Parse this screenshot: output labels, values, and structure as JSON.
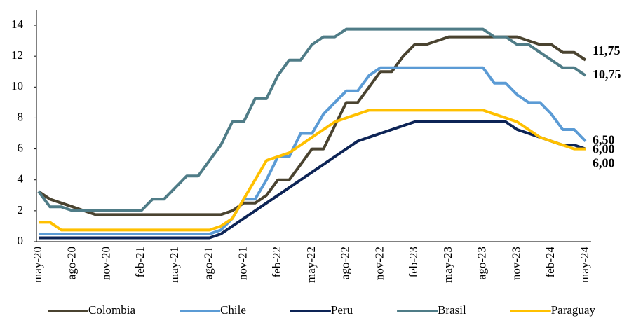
{
  "chart_data": {
    "type": "line",
    "categories": [
      "may-20",
      null,
      null,
      "ago-20",
      null,
      null,
      "nov-20",
      null,
      null,
      "feb-21",
      null,
      null,
      "may-21",
      null,
      null,
      "ago-21",
      null,
      null,
      "nov-21",
      null,
      null,
      "feb-22",
      null,
      null,
      "may-22",
      null,
      null,
      "ago-22",
      null,
      null,
      "nov-22",
      null,
      null,
      "feb-23",
      null,
      null,
      "may-23",
      null,
      null,
      "ago-23",
      null,
      null,
      "nov-23",
      null,
      null,
      "feb-24",
      null,
      null,
      "may-24"
    ],
    "ylim": [
      0,
      14.5
    ],
    "yticks": [
      0,
      2,
      4,
      6,
      8,
      10,
      12,
      14
    ],
    "legend": "bottom",
    "series": [
      {
        "name": "Colombia",
        "color": "#4a4330",
        "values": [
          3.25,
          2.75,
          2.5,
          2.25,
          2,
          1.75,
          1.75,
          1.75,
          1.75,
          1.75,
          1.75,
          1.75,
          1.75,
          1.75,
          1.75,
          1.75,
          1.75,
          2,
          2.5,
          2.5,
          3,
          4,
          4,
          5,
          6,
          6,
          7.5,
          9,
          9,
          10,
          11,
          11,
          12,
          12.75,
          12.75,
          13,
          13.25,
          13.25,
          13.25,
          13.25,
          13.25,
          13.25,
          13.25,
          13,
          12.75,
          12.75,
          12.25,
          12.25,
          11.75
        ],
        "value_labels": [
          null,
          null,
          null,
          null,
          null,
          null,
          null,
          null,
          null,
          null,
          null,
          null,
          null,
          null,
          null,
          null,
          null,
          null,
          null,
          null,
          null,
          null,
          null,
          null,
          null,
          null,
          null,
          null,
          null,
          null,
          null,
          null,
          null,
          null,
          null,
          null,
          null,
          null,
          null,
          null,
          null,
          null,
          null,
          null,
          null,
          null,
          null,
          null,
          "11,75"
        ]
      },
      {
        "name": "Chile",
        "color": "#5b9bd5",
        "values": [
          0.5,
          0.5,
          0.5,
          0.5,
          0.5,
          0.5,
          0.5,
          0.5,
          0.5,
          0.5,
          0.5,
          0.5,
          0.5,
          0.5,
          0.5,
          0.5,
          0.75,
          1.5,
          2.75,
          2.75,
          4,
          5.5,
          5.5,
          7,
          7,
          8.25,
          9,
          9.75,
          9.75,
          10.75,
          11.25,
          11.25,
          11.25,
          11.25,
          11.25,
          11.25,
          11.25,
          11.25,
          11.25,
          11.25,
          10.25,
          10.25,
          9.5,
          9,
          9,
          8.25,
          7.25,
          7.25,
          6.5
        ],
        "value_labels": [
          null,
          null,
          null,
          null,
          null,
          null,
          null,
          null,
          null,
          null,
          null,
          null,
          null,
          null,
          null,
          null,
          null,
          null,
          null,
          null,
          null,
          null,
          null,
          null,
          null,
          null,
          null,
          null,
          null,
          null,
          null,
          null,
          null,
          null,
          null,
          null,
          null,
          null,
          null,
          null,
          null,
          null,
          null,
          null,
          null,
          null,
          null,
          null,
          "6,50"
        ]
      },
      {
        "name": "Peru",
        "color": "#0d2456",
        "values": [
          0.25,
          0.25,
          0.25,
          0.25,
          0.25,
          0.25,
          0.25,
          0.25,
          0.25,
          0.25,
          0.25,
          0.25,
          0.25,
          0.25,
          0.25,
          0.25,
          0.5,
          1,
          1.5,
          2,
          2.5,
          3,
          3.5,
          4,
          4.5,
          5,
          5.5,
          6,
          6.5,
          6.75,
          7,
          7.25,
          7.5,
          7.75,
          7.75,
          7.75,
          7.75,
          7.75,
          7.75,
          7.75,
          7.75,
          7.75,
          7.25,
          7,
          6.75,
          6.5,
          6.25,
          6.25,
          6
        ],
        "value_labels": [
          null,
          null,
          null,
          null,
          null,
          null,
          null,
          null,
          null,
          null,
          null,
          null,
          null,
          null,
          null,
          null,
          null,
          null,
          null,
          null,
          null,
          null,
          null,
          null,
          null,
          null,
          null,
          null,
          null,
          null,
          null,
          null,
          null,
          null,
          null,
          null,
          null,
          null,
          null,
          null,
          null,
          null,
          null,
          null,
          null,
          null,
          null,
          null,
          "6,00"
        ]
      },
      {
        "name": "Brasil",
        "color": "#4f7c87",
        "values": [
          3.25,
          2.25,
          2.25,
          2,
          2,
          2,
          2,
          2,
          2,
          2,
          2.75,
          2.75,
          3.5,
          4.25,
          4.25,
          5.25,
          6.25,
          7.75,
          7.75,
          9.25,
          9.25,
          10.75,
          11.75,
          11.75,
          12.75,
          13.25,
          13.25,
          13.75,
          13.75,
          13.75,
          13.75,
          13.75,
          13.75,
          13.75,
          13.75,
          13.75,
          13.75,
          13.75,
          13.75,
          13.75,
          13.25,
          13.25,
          12.75,
          12.75,
          12.25,
          11.75,
          11.25,
          11.25,
          10.75
        ],
        "value_labels": [
          null,
          null,
          null,
          null,
          null,
          null,
          null,
          null,
          null,
          null,
          null,
          null,
          null,
          null,
          null,
          null,
          null,
          null,
          null,
          null,
          null,
          null,
          null,
          null,
          null,
          null,
          null,
          null,
          null,
          null,
          null,
          null,
          null,
          null,
          null,
          null,
          null,
          null,
          null,
          null,
          null,
          null,
          null,
          null,
          null,
          null,
          null,
          null,
          "10,75"
        ]
      },
      {
        "name": "Paraguay",
        "color": "#ffc000",
        "values": [
          1.25,
          1.25,
          0.75,
          0.75,
          0.75,
          0.75,
          0.75,
          0.75,
          0.75,
          0.75,
          0.75,
          0.75,
          0.75,
          0.75,
          0.75,
          0.75,
          1,
          1.5,
          2.75,
          4,
          5.25,
          5.5,
          5.75,
          6.25,
          6.75,
          7.25,
          7.75,
          8,
          8.25,
          8.5,
          8.5,
          8.5,
          8.5,
          8.5,
          8.5,
          8.5,
          8.5,
          8.5,
          8.5,
          8.5,
          8.25,
          8,
          7.75,
          7.25,
          6.75,
          6.5,
          6.25,
          6,
          6
        ],
        "value_labels": [
          null,
          null,
          null,
          null,
          null,
          null,
          null,
          null,
          null,
          null,
          null,
          null,
          null,
          null,
          null,
          null,
          null,
          null,
          null,
          null,
          null,
          null,
          null,
          null,
          null,
          null,
          null,
          null,
          null,
          null,
          null,
          null,
          null,
          null,
          null,
          null,
          null,
          null,
          null,
          null,
          null,
          null,
          null,
          null,
          null,
          null,
          null,
          null,
          "6,00"
        ]
      }
    ]
  }
}
